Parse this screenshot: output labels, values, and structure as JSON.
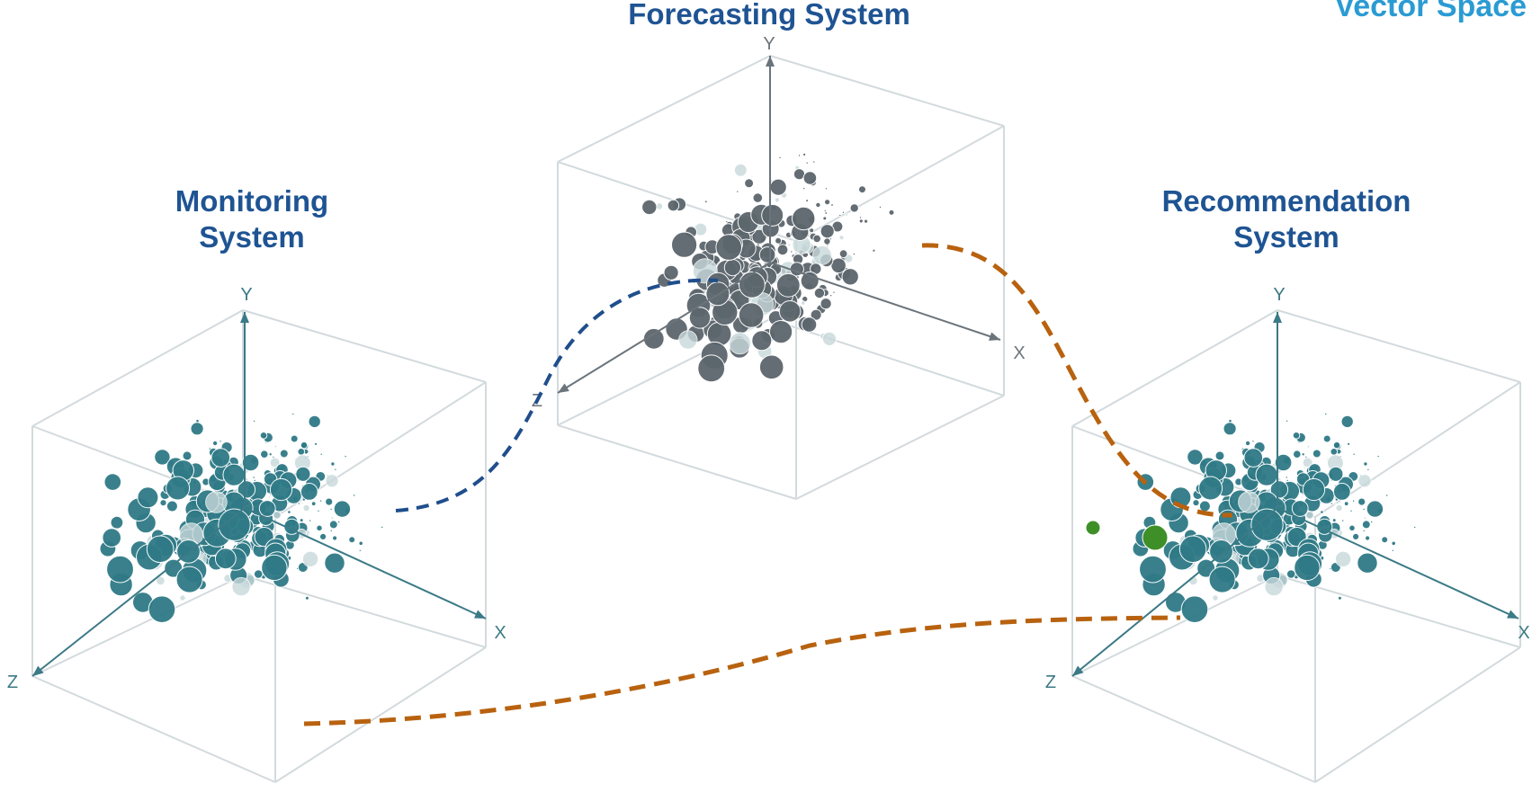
{
  "page_title": "Vector Space",
  "systems": {
    "monitoring": {
      "title": "Monitoring System",
      "axis_color": "#3b7a86",
      "point_color": "#2f7a86"
    },
    "forecasting": {
      "title": "Forecasting System",
      "axis_color": "#6b747b",
      "point_color": "#5c666d"
    },
    "recommendation": {
      "title": "Recommendation System",
      "axis_color": "#3b7a86",
      "point_color": "#2f7a86",
      "highlight_color": "#3e8f28"
    }
  },
  "axes": {
    "x": "X",
    "y": "Y",
    "z": "Z"
  },
  "colors": {
    "title": "#1f5493",
    "page_title": "#2b9bd3",
    "cube_edge": "#d3dadd",
    "link_blue": "#1f4e8c",
    "link_orange": "#b8620f"
  }
}
